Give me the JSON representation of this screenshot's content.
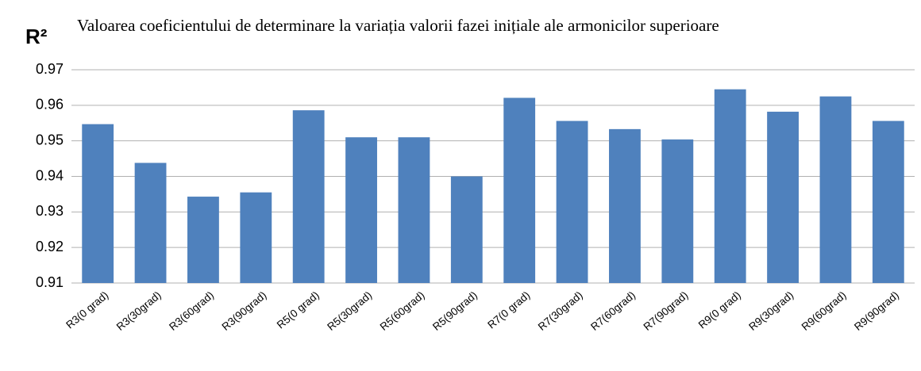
{
  "chart_data": {
    "type": "bar",
    "title": "Valoarea coeficientului de determinare  la variația valorii fazei inițiale ale armonicilor superioare",
    "y_label": "R²",
    "categories": [
      "R3(0 grad)",
      "R3(30grad)",
      "R3(60grad)",
      "R3(90grad)",
      "R5(0 grad)",
      "R5(30grad)",
      "R5(60grad)",
      "R5(90grad)",
      "R7(0 grad)",
      "R7(30grad)",
      "R7(60grad)",
      "R7(90grad)",
      "R9(0 grad)",
      "R9(30grad)",
      "R9(60grad)",
      "R9(90grad)"
    ],
    "values": [
      0.9547,
      0.9438,
      0.9343,
      0.9355,
      0.9586,
      0.951,
      0.951,
      0.94,
      0.9621,
      0.9556,
      0.9533,
      0.9504,
      0.9645,
      0.9582,
      0.9625,
      0.9556
    ],
    "color": "#4f81bd",
    "ylim": [
      0.91,
      0.97
    ],
    "yticks": [
      0.91,
      0.92,
      0.93,
      0.94,
      0.95,
      0.96,
      0.97
    ],
    "grid": true
  }
}
